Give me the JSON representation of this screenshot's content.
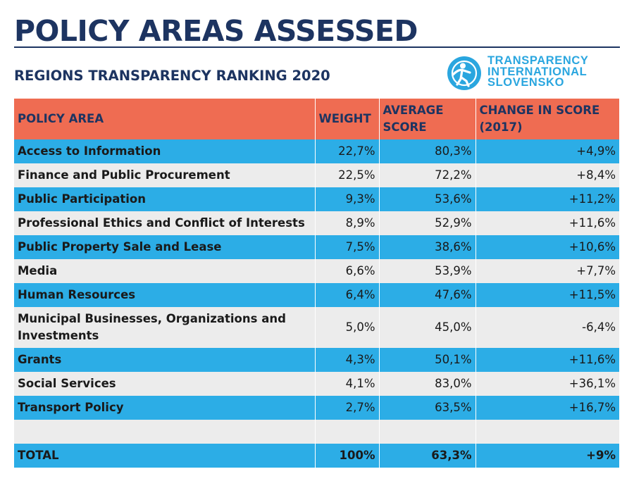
{
  "header": {
    "title": "POLICY AREAS ASSESSED",
    "subtitle": "REGIONS TRANSPARENCY RANKING 2020"
  },
  "logo": {
    "lines": [
      "TRANSPARENCY",
      "INTERNATIONAL",
      "SLOVENSKO"
    ],
    "color": "#2aa6df"
  },
  "colors": {
    "header_bg": "#ef6c52",
    "row_blue": "#2cade6",
    "row_grey": "#ececec",
    "title": "#1d3461"
  },
  "table": {
    "columns": [
      "POLICY AREA",
      "WEIGHT",
      "AVERAGE SCORE",
      "CHANGE IN SCORE (2017)"
    ],
    "rows": [
      {
        "area": "Access to Information",
        "weight": "22,7%",
        "score": "80,3%",
        "change": "+4,9%"
      },
      {
        "area": "Finance and Public Procurement",
        "weight": "22,5%",
        "score": "72,2%",
        "change": "+8,4%"
      },
      {
        "area": "Public Participation",
        "weight": "9,3%",
        "score": "53,6%",
        "change": "+11,2%"
      },
      {
        "area": "Professional Ethics and Conflict of Interests",
        "weight": "8,9%",
        "score": "52,9%",
        "change": "+11,6%"
      },
      {
        "area": "Public Property Sale and Lease",
        "weight": "7,5%",
        "score": "38,6%",
        "change": "+10,6%"
      },
      {
        "area": "Media",
        "weight": "6,6%",
        "score": "53,9%",
        "change": "+7,7%"
      },
      {
        "area": "Human Resources",
        "weight": "6,4%",
        "score": "47,6%",
        "change": "+11,5%"
      },
      {
        "area": "Municipal Businesses, Organizations and Investments",
        "weight": "5,0%",
        "score": "45,0%",
        "change": "-6,4%"
      },
      {
        "area": "Grants",
        "weight": "4,3%",
        "score": "50,1%",
        "change": "+11,6%"
      },
      {
        "area": "Social Services",
        "weight": "4,1%",
        "score": "83,0%",
        "change": "+36,1%"
      },
      {
        "area": "Transport Policy",
        "weight": "2,7%",
        "score": "63,5%",
        "change": "+16,7%"
      }
    ],
    "total": {
      "area": "TOTAL",
      "weight": "100%",
      "score": "63,3%",
      "change": "+9%"
    }
  }
}
